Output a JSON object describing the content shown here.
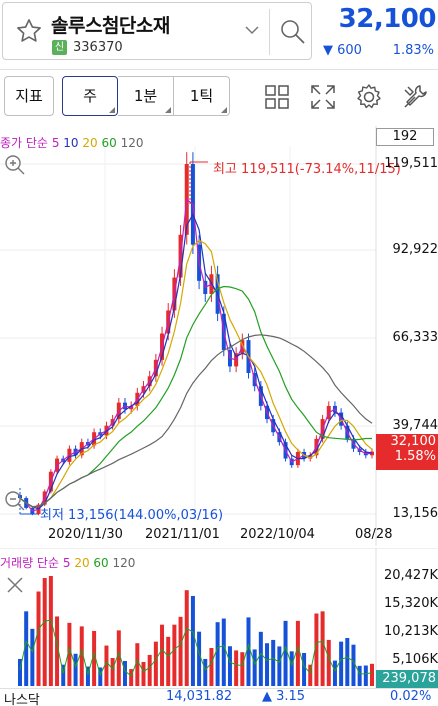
{
  "stock": {
    "name": "솔루스첨단소재",
    "badge": "신",
    "code": "336370",
    "price": "32,100",
    "change": "600",
    "change_pct": "1.83%"
  },
  "toolbar": {
    "indicator": "지표",
    "week": "주",
    "min1": "1분",
    "tick1": "1틱",
    "right_box_value": "192"
  },
  "legend": {
    "label": "종가 단순",
    "ma5": "5",
    "ma10": "10",
    "ma20": "20",
    "ma60": "60",
    "ma120": "120"
  },
  "chart": {
    "high_label": "최고 119,511(-73.14%,11/15)",
    "low_label": "최저 13,156(144.00%,03/16)",
    "y_ticks": [
      "119,511",
      "92,922",
      "66,333",
      "39,744",
      "13,156"
    ],
    "x_ticks": [
      "2020/11/30",
      "2021/11/01",
      "2022/10/04",
      "08/28"
    ],
    "current_price": "32,100",
    "current_pct": "1.58%"
  },
  "volume": {
    "label": "거래량 단순",
    "ma5": "5",
    "ma20": "20",
    "ma60": "60",
    "ma120": "120",
    "y_ticks": [
      "20,427K",
      "15,320K",
      "10,213K",
      "5,106K"
    ],
    "current": "239,078"
  },
  "bottom": {
    "name": "나스닥",
    "value": "14,031.82",
    "change": "▲ 3.15",
    "pct": "0.02%"
  },
  "colors": {
    "up": "#e52b2b",
    "down": "#1652d8",
    "ma5": "#c020c0",
    "ma10": "#2233bb",
    "ma20": "#d4a800",
    "ma60": "#22a022",
    "ma120": "#666666",
    "vol_current": "#2aa39a"
  },
  "chart_data": {
    "type": "candlestick",
    "series": [
      {
        "name": "price",
        "values": [
          18000,
          15000,
          13156,
          16000,
          20000,
          26000,
          30000,
          29000,
          33000,
          31000,
          35000,
          34000,
          38000,
          37000,
          40000,
          42000,
          47000,
          45000,
          46000,
          50000,
          52000,
          55000,
          60000,
          68000,
          75000,
          85000,
          98000,
          119511,
          95000,
          84000,
          80000,
          86000,
          74000,
          63000,
          58000,
          62000,
          66000,
          56000,
          52000,
          46000,
          42000,
          38000,
          35000,
          30000,
          28000,
          32000,
          30000,
          31000,
          36000,
          42000,
          46000,
          44000,
          40000,
          36000,
          33000,
          32000,
          31000,
          32100
        ]
      }
    ],
    "ylim": [
      13156,
      119511
    ]
  }
}
